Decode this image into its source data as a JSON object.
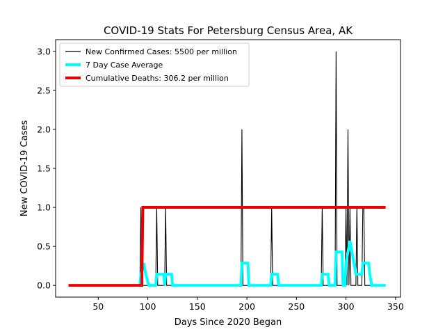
{
  "chart_data": {
    "type": "line",
    "title": "COVID-19 Stats For Petersburg Census Area, AK",
    "xlabel": "Days Since 2020 Began",
    "ylabel": "New COVID-19 Cases",
    "xlim": [
      7,
      355
    ],
    "ylim": [
      -0.15,
      3.15
    ],
    "xticks": [
      50,
      100,
      150,
      200,
      250,
      300,
      350
    ],
    "yticks": [
      0.0,
      0.5,
      1.0,
      1.5,
      2.0,
      2.5,
      3.0
    ],
    "xtick_labels": [
      "50",
      "100",
      "150",
      "200",
      "250",
      "300",
      "350"
    ],
    "ytick_labels": [
      "0.0",
      "0.5",
      "1.0",
      "1.5",
      "2.0",
      "2.5",
      "3.0"
    ],
    "grid": false,
    "legend_position": "top-left",
    "series": [
      {
        "name": "New Confirmed Cases: 5500 per million",
        "color": "#000000",
        "points": [
          [
            20,
            0
          ],
          [
            92,
            0
          ],
          [
            93,
            1
          ],
          [
            94,
            0
          ],
          [
            108,
            0
          ],
          [
            109,
            1
          ],
          [
            110,
            0
          ],
          [
            117,
            0
          ],
          [
            118,
            1
          ],
          [
            119,
            0
          ],
          [
            194,
            0
          ],
          [
            195,
            2
          ],
          [
            196,
            0
          ],
          [
            224,
            0
          ],
          [
            225,
            1
          ],
          [
            226,
            0
          ],
          [
            275,
            0
          ],
          [
            276,
            1
          ],
          [
            277,
            0
          ],
          [
            289,
            0
          ],
          [
            290,
            3
          ],
          [
            291,
            0
          ],
          [
            299,
            0
          ],
          [
            300,
            1
          ],
          [
            301,
            0
          ],
          [
            302,
            2
          ],
          [
            303,
            0
          ],
          [
            304,
            1
          ],
          [
            305,
            0
          ],
          [
            310,
            0
          ],
          [
            311,
            1
          ],
          [
            312,
            0
          ],
          [
            316,
            0
          ],
          [
            317,
            1
          ],
          [
            318,
            1
          ],
          [
            319,
            0
          ],
          [
            340,
            0
          ]
        ]
      },
      {
        "name": "7 Day Case Average",
        "color": "#00ffff",
        "points": [
          [
            92,
            0
          ],
          [
            93,
            0.143
          ],
          [
            96,
            0.286
          ],
          [
            98,
            0.143
          ],
          [
            101,
            0
          ],
          [
            108,
            0
          ],
          [
            109,
            0.143
          ],
          [
            116,
            0.143
          ],
          [
            117,
            0
          ],
          [
            118,
            0.143
          ],
          [
            124,
            0.143
          ],
          [
            125,
            0
          ],
          [
            194,
            0
          ],
          [
            195,
            0.286
          ],
          [
            201,
            0.286
          ],
          [
            202,
            0
          ],
          [
            224,
            0
          ],
          [
            225,
            0.143
          ],
          [
            231,
            0.143
          ],
          [
            232,
            0
          ],
          [
            275,
            0
          ],
          [
            276,
            0.143
          ],
          [
            282,
            0.143
          ],
          [
            283,
            0
          ],
          [
            289,
            0
          ],
          [
            290,
            0.429
          ],
          [
            296,
            0.429
          ],
          [
            297,
            0
          ],
          [
            299,
            0
          ],
          [
            300,
            0.286
          ],
          [
            302,
            0.429
          ],
          [
            304,
            0.571
          ],
          [
            306,
            0.429
          ],
          [
            310,
            0.143
          ],
          [
            316,
            0.143
          ],
          [
            317,
            0.286
          ],
          [
            323,
            0.286
          ],
          [
            324,
            0.143
          ],
          [
            326,
            0
          ],
          [
            340,
            0
          ]
        ]
      },
      {
        "name": "Cumulative Deaths: 306.2 per million",
        "color": "#ee0000",
        "points": [
          [
            20,
            0
          ],
          [
            94,
            0
          ],
          [
            95,
            1
          ],
          [
            340,
            1
          ]
        ]
      }
    ]
  }
}
